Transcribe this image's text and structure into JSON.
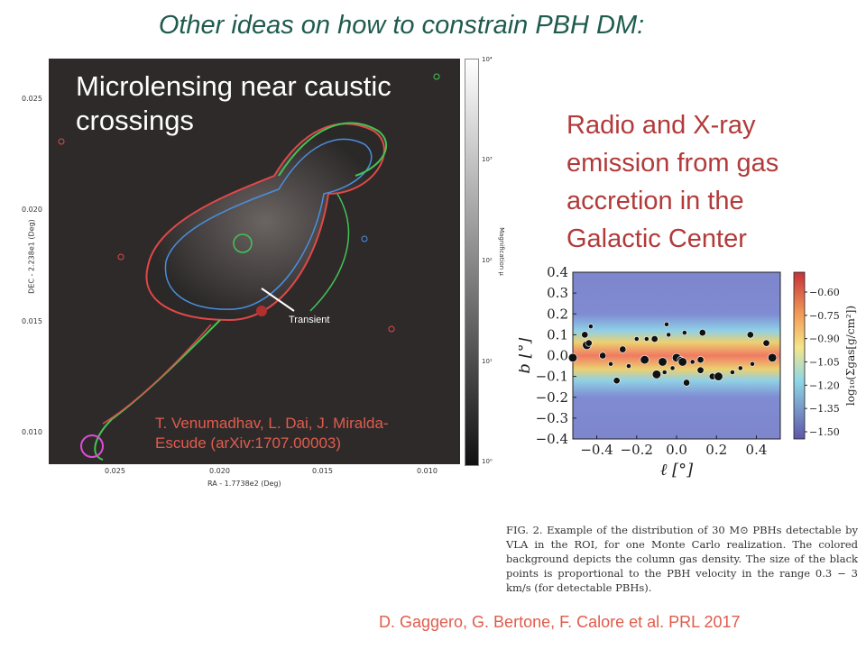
{
  "slide": {
    "title": "Other ideas on how to constrain PBH DM:"
  },
  "microlensing": {
    "heading_line1": "Microlensing near caustic",
    "heading_line2": "crossings",
    "credit_line1": "T. Venumadhav, L. Dai, J. Miralda-",
    "credit_line2": "Escude (arXiv:1707.00003)",
    "transient_label": "Transient",
    "xlabel": "RA - 1.7738e2 (Deg)",
    "ylabel": "DEC - 2.238e1 (Deg)",
    "xticks": [
      "0.025",
      "0.020",
      "0.015",
      "0.010"
    ],
    "yticks": [
      "0.025",
      "0.020",
      "0.015",
      "0.010"
    ],
    "colorbar_label": "Magnification μ",
    "colorbar_ticks": [
      "10⁴",
      "10³",
      "10²",
      "10¹",
      "10⁰"
    ]
  },
  "radio": {
    "heading_line1": "Radio and X-ray",
    "heading_line2": "emission from gas",
    "heading_line3": "accretion in the",
    "heading_line4": "Galactic Center"
  },
  "caption": {
    "text": "FIG. 2. Example of the distribution of 30 M⊙ PBHs detectable by VLA in the ROI, for one Monte Carlo realization. The colored background depicts the column gas density. The size of the black points is proportional to the PBH velocity in the range 0.3 − 3 km/s (for detectable PBHs)."
  },
  "gas_credit": "D. Gaggero, G. Bertone, F. Calore et al. PRL 2017",
  "chart_data": {
    "type": "scatter",
    "xlabel": "ℓ [°]",
    "ylabel": "b [°]",
    "xlim": [
      -0.52,
      0.52
    ],
    "ylim": [
      -0.4,
      0.4
    ],
    "xticks": [
      -0.4,
      -0.2,
      0.0,
      0.2,
      0.4
    ],
    "xtick_labels": [
      "−0.4",
      "−0.2",
      "0.0",
      "0.2",
      "0.4"
    ],
    "yticks": [
      0.4,
      0.3,
      0.2,
      0.1,
      0.0,
      -0.1,
      -0.2,
      -0.3,
      -0.4
    ],
    "ytick_labels": [
      "0.4",
      "0.3",
      "0.2",
      "0.1",
      "0.0",
      "−0.1",
      "−0.2",
      "−0.3",
      "−0.4"
    ],
    "colorbar_label": "log₁₀(Σgas[g/cm²])",
    "colorbar_ticks": [
      "−0.60",
      "−0.75",
      "−0.90",
      "−1.05",
      "−1.20",
      "−1.35",
      "−1.50"
    ],
    "points": [
      {
        "x": -0.52,
        "y": -0.01,
        "size": 3
      },
      {
        "x": -0.46,
        "y": 0.1,
        "size": 2
      },
      {
        "x": -0.45,
        "y": 0.05,
        "size": 3
      },
      {
        "x": -0.44,
        "y": 0.06,
        "size": 2
      },
      {
        "x": -0.43,
        "y": 0.14,
        "size": 1
      },
      {
        "x": -0.37,
        "y": 0.0,
        "size": 2
      },
      {
        "x": -0.33,
        "y": -0.04,
        "size": 1
      },
      {
        "x": -0.3,
        "y": -0.12,
        "size": 2
      },
      {
        "x": -0.27,
        "y": 0.03,
        "size": 2
      },
      {
        "x": -0.24,
        "y": -0.05,
        "size": 1
      },
      {
        "x": -0.2,
        "y": 0.08,
        "size": 1
      },
      {
        "x": -0.16,
        "y": -0.02,
        "size": 3
      },
      {
        "x": -0.15,
        "y": 0.08,
        "size": 1
      },
      {
        "x": -0.11,
        "y": 0.08,
        "size": 2
      },
      {
        "x": -0.1,
        "y": -0.09,
        "size": 3
      },
      {
        "x": -0.07,
        "y": -0.03,
        "size": 3
      },
      {
        "x": -0.06,
        "y": -0.08,
        "size": 1
      },
      {
        "x": -0.05,
        "y": 0.15,
        "size": 1
      },
      {
        "x": -0.04,
        "y": 0.1,
        "size": 1
      },
      {
        "x": -0.02,
        "y": -0.06,
        "size": 1
      },
      {
        "x": 0.0,
        "y": -0.01,
        "size": 3
      },
      {
        "x": 0.02,
        "y": -0.02,
        "size": 2
      },
      {
        "x": 0.03,
        "y": -0.03,
        "size": 3
      },
      {
        "x": 0.04,
        "y": 0.11,
        "size": 1
      },
      {
        "x": 0.05,
        "y": -0.13,
        "size": 2
      },
      {
        "x": 0.08,
        "y": -0.03,
        "size": 1
      },
      {
        "x": 0.12,
        "y": -0.07,
        "size": 2
      },
      {
        "x": 0.12,
        "y": -0.02,
        "size": 2
      },
      {
        "x": 0.13,
        "y": 0.11,
        "size": 2
      },
      {
        "x": 0.18,
        "y": -0.1,
        "size": 2
      },
      {
        "x": 0.21,
        "y": -0.1,
        "size": 3
      },
      {
        "x": 0.28,
        "y": -0.08,
        "size": 1
      },
      {
        "x": 0.32,
        "y": -0.06,
        "size": 1
      },
      {
        "x": 0.37,
        "y": 0.1,
        "size": 2
      },
      {
        "x": 0.38,
        "y": -0.04,
        "size": 1
      },
      {
        "x": 0.45,
        "y": 0.06,
        "size": 2
      },
      {
        "x": 0.48,
        "y": -0.01,
        "size": 3
      }
    ]
  }
}
